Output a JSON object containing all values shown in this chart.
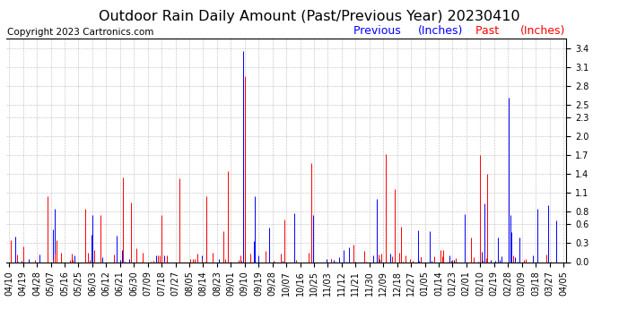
{
  "title": "Outdoor Rain Daily Amount (Past/Previous Year) 20230410",
  "copyright": "Copyright 2023 Cartronics.com",
  "legend_previous": "Previous",
  "legend_past": "Past",
  "legend_units": "(Inches)",
  "ylim": [
    0.0,
    3.55
  ],
  "yticks": [
    0.0,
    0.3,
    0.6,
    0.8,
    1.1,
    1.4,
    1.7,
    2.0,
    2.3,
    2.5,
    2.8,
    3.1,
    3.4
  ],
  "background_color": "#ffffff",
  "grid_color": "#bbbbbb",
  "past_color": "#ff0000",
  "previous_color": "#0000ff",
  "title_fontsize": 11.5,
  "copyright_fontsize": 7.5,
  "legend_fontsize": 9,
  "tick_fontsize": 7,
  "n_points": 366,
  "x_tick_labels": [
    "04/10",
    "04/19",
    "04/28",
    "05/07",
    "05/16",
    "05/25",
    "06/03",
    "06/12",
    "06/21",
    "06/30",
    "07/09",
    "07/18",
    "07/27",
    "08/05",
    "08/14",
    "08/23",
    "09/01",
    "09/10",
    "09/19",
    "09/28",
    "10/07",
    "10/16",
    "10/25",
    "11/03",
    "11/12",
    "11/21",
    "11/30",
    "12/09",
    "12/18",
    "12/27",
    "01/05",
    "01/14",
    "01/23",
    "02/01",
    "02/10",
    "02/19",
    "02/28",
    "03/09",
    "03/18",
    "03/27",
    "04/05"
  ]
}
